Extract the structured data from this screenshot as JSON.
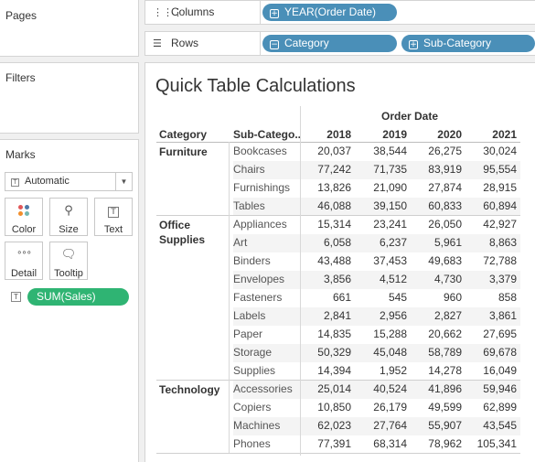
{
  "pages_card": {
    "title": "Pages"
  },
  "filters_card": {
    "title": "Filters"
  },
  "marks_card": {
    "title": "Marks",
    "mark_type": "Automatic",
    "buttons": [
      {
        "label": "Color",
        "icon": "color-dots-icon"
      },
      {
        "label": "Size",
        "icon": "size-icon"
      },
      {
        "label": "Text",
        "icon": "text-icon"
      },
      {
        "label": "Detail",
        "icon": "detail-icon"
      },
      {
        "label": "Tooltip",
        "icon": "tooltip-icon"
      }
    ],
    "measure_pill": "SUM(Sales)"
  },
  "columns_shelf": {
    "label": "Columns",
    "pills": [
      "YEAR(Order Date)"
    ]
  },
  "rows_shelf": {
    "label": "Rows",
    "pills": [
      "Category",
      "Sub-Category"
    ]
  },
  "view": {
    "title": "Quick Table Calculations",
    "column_group_header": "Order Date",
    "header_category": "Category",
    "header_subcategory": "Sub-Catego..",
    "years": [
      "2018",
      "2019",
      "2020",
      "2021"
    ],
    "groups": [
      {
        "category": "Furniture",
        "rows": [
          {
            "sub": "Bookcases",
            "values": [
              "20,037",
              "38,544",
              "26,275",
              "30,024"
            ]
          },
          {
            "sub": "Chairs",
            "values": [
              "77,242",
              "71,735",
              "83,919",
              "95,554"
            ]
          },
          {
            "sub": "Furnishings",
            "values": [
              "13,826",
              "21,090",
              "27,874",
              "28,915"
            ]
          },
          {
            "sub": "Tables",
            "values": [
              "46,088",
              "39,150",
              "60,833",
              "60,894"
            ]
          }
        ]
      },
      {
        "category": "Office Supplies",
        "rows": [
          {
            "sub": "Appliances",
            "values": [
              "15,314",
              "23,241",
              "26,050",
              "42,927"
            ]
          },
          {
            "sub": "Art",
            "values": [
              "6,058",
              "6,237",
              "5,961",
              "8,863"
            ]
          },
          {
            "sub": "Binders",
            "values": [
              "43,488",
              "37,453",
              "49,683",
              "72,788"
            ]
          },
          {
            "sub": "Envelopes",
            "values": [
              "3,856",
              "4,512",
              "4,730",
              "3,379"
            ]
          },
          {
            "sub": "Fasteners",
            "values": [
              "661",
              "545",
              "960",
              "858"
            ]
          },
          {
            "sub": "Labels",
            "values": [
              "2,841",
              "2,956",
              "2,827",
              "3,861"
            ]
          },
          {
            "sub": "Paper",
            "values": [
              "14,835",
              "15,288",
              "20,662",
              "27,695"
            ]
          },
          {
            "sub": "Storage",
            "values": [
              "50,329",
              "45,048",
              "58,789",
              "69,678"
            ]
          },
          {
            "sub": "Supplies",
            "values": [
              "14,394",
              "1,952",
              "14,278",
              "16,049"
            ]
          }
        ]
      },
      {
        "category": "Technology",
        "rows": [
          {
            "sub": "Accessories",
            "values": [
              "25,014",
              "40,524",
              "41,896",
              "59,946"
            ]
          },
          {
            "sub": "Copiers",
            "values": [
              "10,850",
              "26,179",
              "49,599",
              "62,899"
            ]
          },
          {
            "sub": "Machines",
            "values": [
              "62,023",
              "27,764",
              "55,907",
              "43,545"
            ]
          },
          {
            "sub": "Phones",
            "values": [
              "77,391",
              "68,314",
              "78,962",
              "105,341"
            ]
          }
        ]
      }
    ]
  },
  "colors": {
    "blue_pill": "#4a8fb8",
    "green_pill": "#2fb473"
  }
}
